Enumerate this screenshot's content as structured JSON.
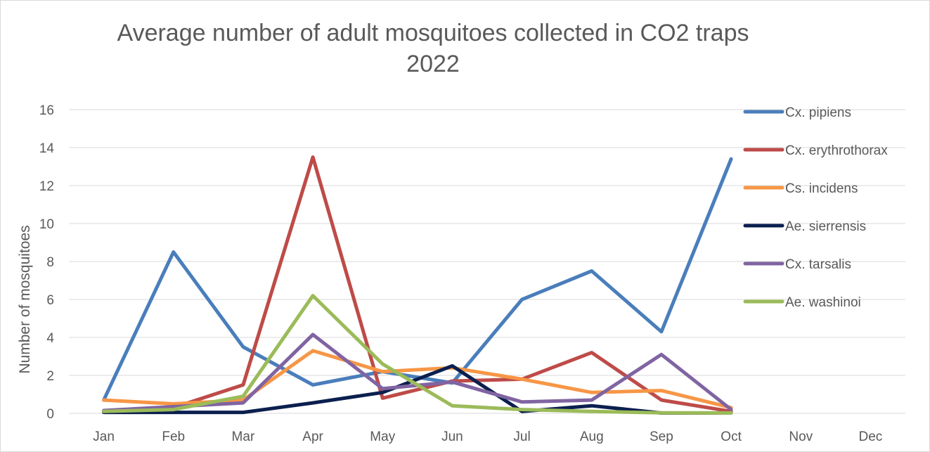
{
  "chart_data": {
    "type": "line",
    "title_line1": "Average number of adult mosquitoes collected in CO2 traps",
    "title_line2": "2022",
    "xlabel": "",
    "ylabel": "Number of mosquitoes",
    "categories": [
      "Jan",
      "Feb",
      "Mar",
      "Apr",
      "May",
      "Jun",
      "Jul",
      "Aug",
      "Sep",
      "Oct",
      "Nov",
      "Dec"
    ],
    "y_ticks": [
      "0",
      "2",
      "4",
      "6",
      "8",
      "10",
      "12",
      "14",
      "16"
    ],
    "ylim": [
      0,
      16
    ],
    "grid": "horizontal",
    "legend_position": "right",
    "series": [
      {
        "name": "Cx. pipiens",
        "color": "#4a7ebb",
        "values": [
          0.7,
          8.5,
          3.5,
          1.5,
          2.2,
          1.6,
          6.0,
          7.5,
          4.3,
          13.4,
          null,
          null
        ]
      },
      {
        "name": "Cx. erythrothorax",
        "color": "#be4b48",
        "values": [
          0.1,
          0.3,
          1.5,
          13.5,
          0.8,
          1.7,
          1.8,
          3.2,
          0.7,
          0.1,
          null,
          null
        ]
      },
      {
        "name": "Cs. incidens",
        "color": "#f79646",
        "values": [
          0.7,
          0.5,
          0.7,
          3.3,
          2.2,
          2.4,
          1.8,
          1.1,
          1.2,
          0.3,
          null,
          null
        ]
      },
      {
        "name": "Ae. sierrensis",
        "color": "#0b1f4f",
        "values": [
          0.05,
          0.05,
          0.05,
          0.55,
          1.1,
          2.5,
          0.1,
          0.4,
          0.02,
          0.02,
          null,
          null
        ]
      },
      {
        "name": "Cx. tarsalis",
        "color": "#8064a2",
        "values": [
          0.15,
          0.35,
          0.55,
          4.15,
          1.3,
          1.65,
          0.6,
          0.7,
          3.1,
          0.2,
          null,
          null
        ]
      },
      {
        "name": "Ae. washinoi",
        "color": "#9bbb59",
        "values": [
          0.1,
          0.2,
          0.9,
          6.2,
          2.6,
          0.4,
          0.2,
          0.1,
          0.03,
          0.02,
          null,
          null
        ]
      }
    ]
  }
}
